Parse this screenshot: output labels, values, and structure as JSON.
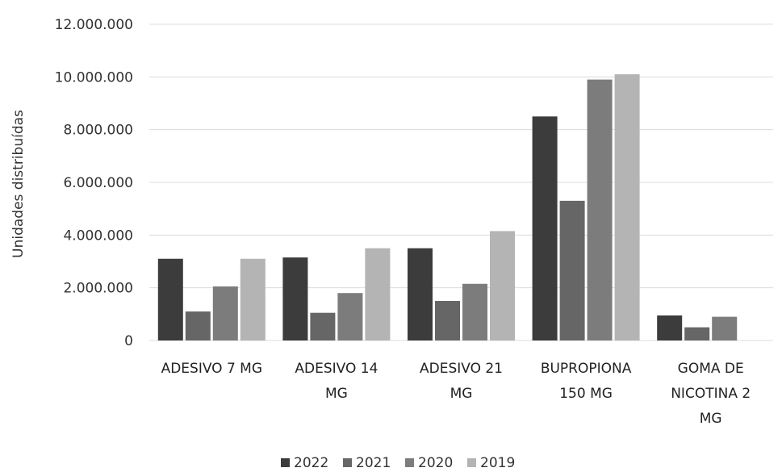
{
  "chart_data": {
    "type": "bar",
    "ylabel": "Unidades distribuídas",
    "ylim": [
      0,
      12000000
    ],
    "yticks": [
      "0",
      "2.000.000",
      "4.000.000",
      "6.000.000",
      "8.000.000",
      "10.000.000",
      "12.000.000"
    ],
    "grid": true,
    "legend_position": "bottom",
    "categories": [
      [
        "ADESIVO 7 MG"
      ],
      [
        "ADESIVO 14",
        "MG"
      ],
      [
        "ADESIVO 21",
        "MG"
      ],
      [
        "BUPROPIONA",
        "150 MG"
      ],
      [
        "GOMA DE",
        "NICOTINA 2",
        "MG"
      ]
    ],
    "series": [
      {
        "name": "2022",
        "color": "#3c3c3c",
        "values": [
          3100000,
          3150000,
          3500000,
          8500000,
          950000
        ]
      },
      {
        "name": "2021",
        "color": "#666666",
        "values": [
          1100000,
          1050000,
          1500000,
          5300000,
          500000
        ]
      },
      {
        "name": "2020",
        "color": "#7c7c7c",
        "values": [
          2050000,
          1800000,
          2150000,
          9900000,
          900000
        ]
      },
      {
        "name": "2019",
        "color": "#b4b4b4",
        "values": [
          3100000,
          3500000,
          4150000,
          10100000,
          0
        ]
      }
    ]
  }
}
